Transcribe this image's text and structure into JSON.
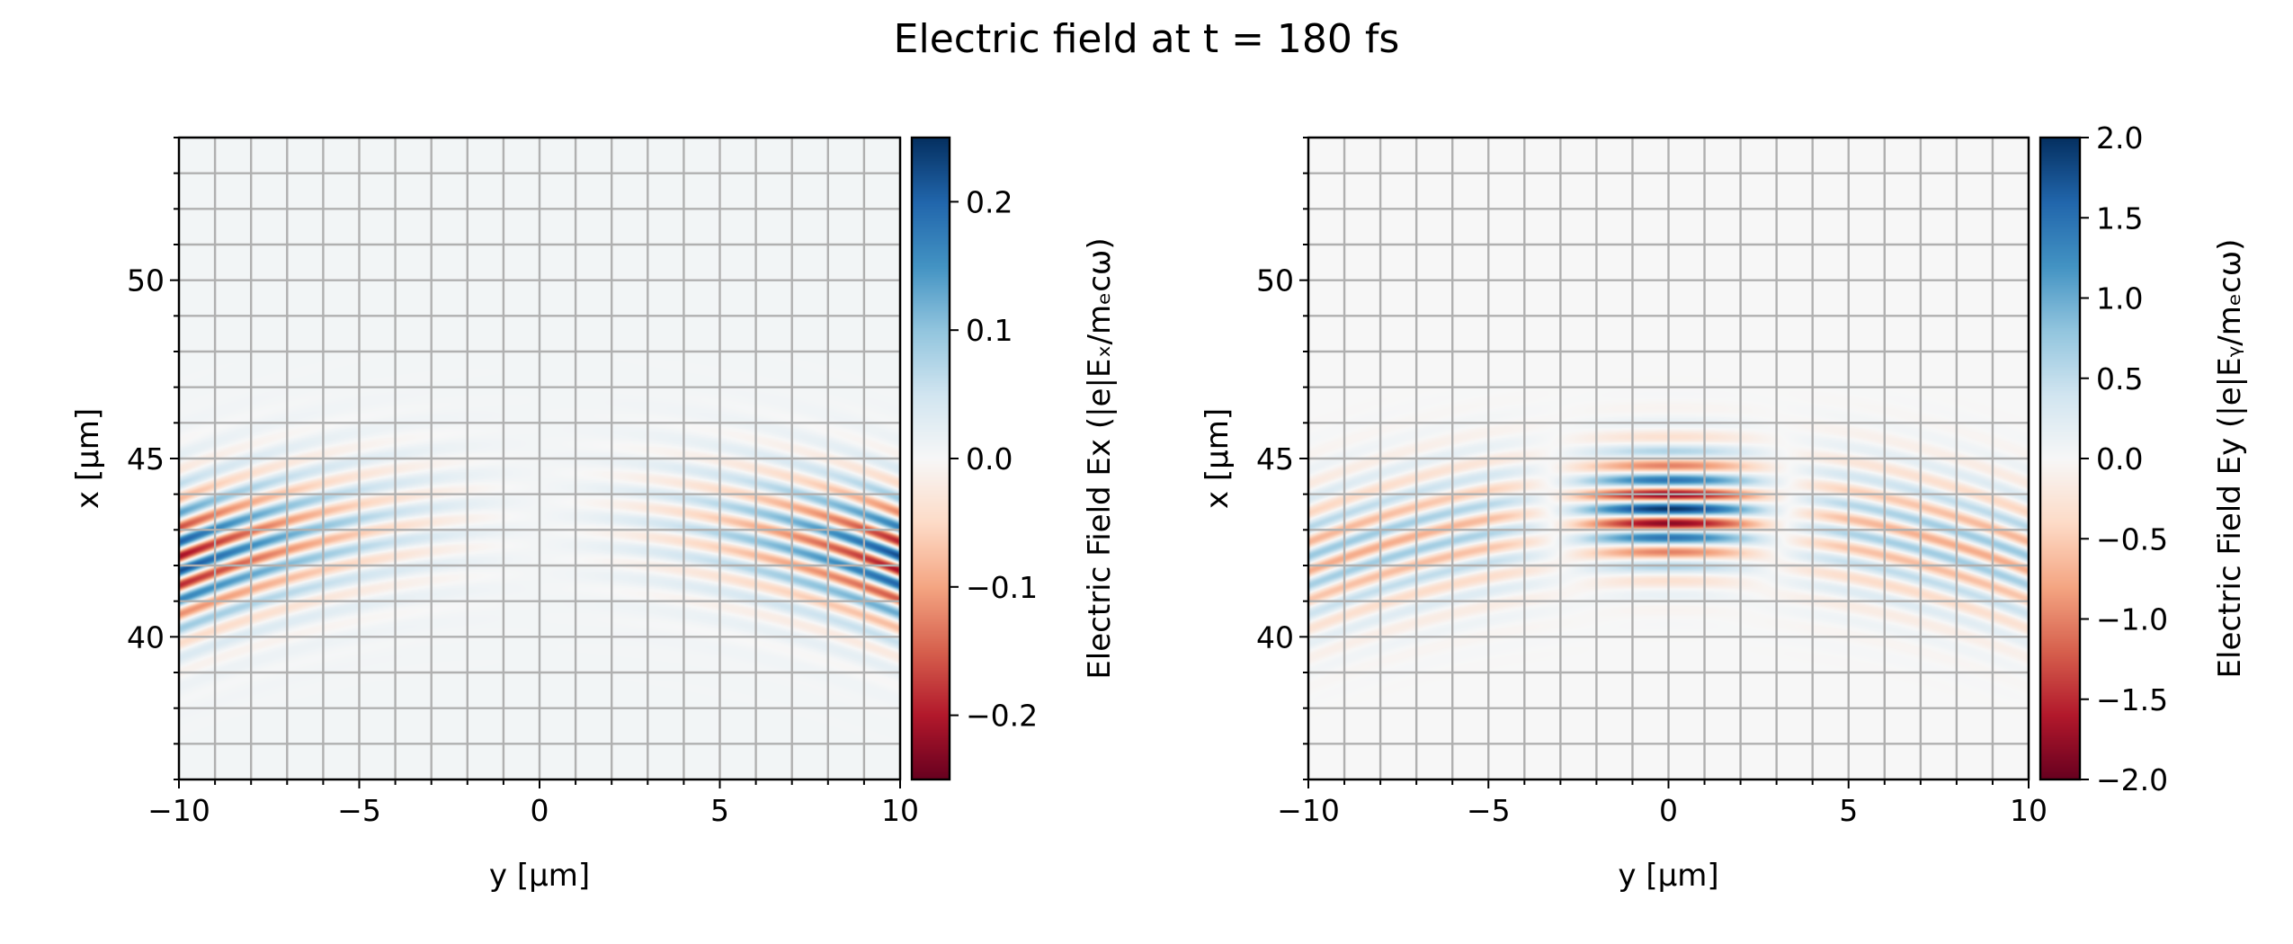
{
  "suptitle": "Electric field at t = 180 fs",
  "chart_data": [
    {
      "type": "heatmap",
      "field": "Ex",
      "xlabel": "y [µm]",
      "ylabel": "x [µm]",
      "xlim": [
        -10,
        10
      ],
      "ylim": [
        36,
        54
      ],
      "xticks": [
        -10,
        -5,
        0,
        5,
        10
      ],
      "xtick_labels": [
        "−10",
        "−5",
        "0",
        "5",
        "10"
      ],
      "yticks": [
        40,
        45,
        50
      ],
      "ytick_labels": [
        "40",
        "45",
        "50"
      ],
      "grid": true,
      "grid_spacing": 1,
      "colormap": "RdBu",
      "clim": [
        -0.25,
        0.25
      ],
      "colorbar_label": "Electric Field Ex (|e|Eₓ/mₑcω)",
      "colorbar_ticks": [
        -0.2,
        -0.1,
        0.0,
        0.1,
        0.2
      ],
      "colorbar_tick_labels": [
        "−0.2",
        "−0.1",
        "0.0",
        "0.1",
        "0.2"
      ],
      "pattern": "curved wavefronts centered near x≈43 µm, strongest at |y|≈8–10 µm, weak near y=0"
    },
    {
      "type": "heatmap",
      "field": "Ey",
      "xlabel": "y [µm]",
      "ylabel": "x [µm]",
      "xlim": [
        -10,
        10
      ],
      "ylim": [
        36,
        54
      ],
      "xticks": [
        -10,
        -5,
        0,
        5,
        10
      ],
      "xtick_labels": [
        "−10",
        "−5",
        "0",
        "5",
        "10"
      ],
      "yticks": [
        40,
        45,
        50
      ],
      "ytick_labels": [
        "40",
        "45",
        "50"
      ],
      "grid": true,
      "grid_spacing": 1,
      "colormap": "RdBu",
      "clim": [
        -2.0,
        2.0
      ],
      "colorbar_label": "Electric Field Ey (|e|Eᵧ/mₑcω)",
      "colorbar_ticks": [
        -2.0,
        -1.5,
        -1.0,
        -0.5,
        0.0,
        0.5,
        1.0,
        1.5,
        2.0
      ],
      "colorbar_tick_labels": [
        "−2.0",
        "−1.5",
        "−1.0",
        "−0.5",
        "0.0",
        "0.5",
        "1.0",
        "1.5",
        "2.0"
      ],
      "pattern": "strong pulse centered at y≈0, x≈43.5 µm with peak ≈ ±2, weaker curved side fringes"
    }
  ]
}
